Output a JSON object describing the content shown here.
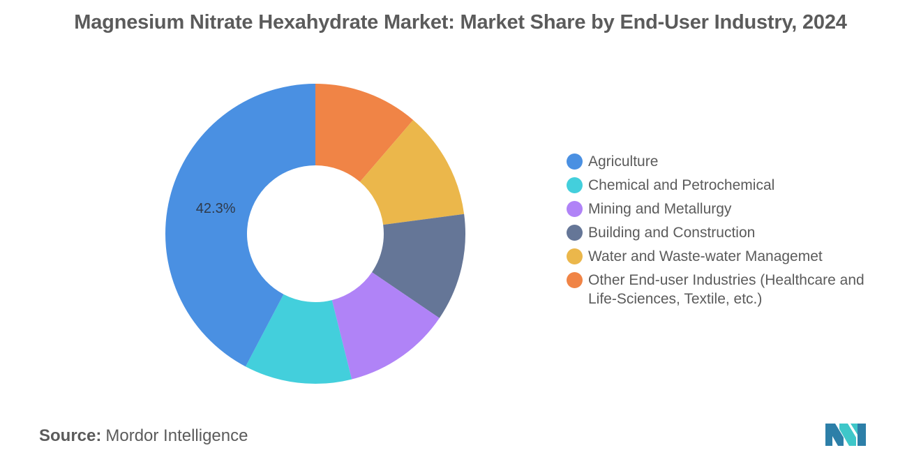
{
  "title": "Magnesium Nitrate Hexahydrate Market: Market Share by End-User Industry, 2024",
  "chart_data": {
    "type": "pie",
    "donut": true,
    "title": "Magnesium Nitrate Hexahydrate Market: Market Share by End-User Industry, 2024",
    "categories": [
      "Agriculture",
      "Chemical and Petrochemical",
      "Mining and Metallurgy",
      "Building and Construction",
      "Water and Waste-water Managemet",
      "Other End-user Industries (Healthcare and Life-Sciences, Textile, etc.)"
    ],
    "values": [
      42.3,
      11.6,
      11.6,
      11.6,
      11.6,
      11.3
    ],
    "colors": [
      "#4a90e2",
      "#43cfdc",
      "#b083f7",
      "#657697",
      "#ebb74b",
      "#f08446"
    ],
    "data_labels": [
      "42.3%",
      "",
      "",
      "",
      "",
      ""
    ],
    "legend_position": "right"
  },
  "source": {
    "label": "Source:",
    "text": "Mordor Intelligence"
  },
  "logo": {
    "icon": "mordor-intelligence-logo",
    "colors": [
      "#2d7fa8",
      "#3ec7c9"
    ]
  }
}
